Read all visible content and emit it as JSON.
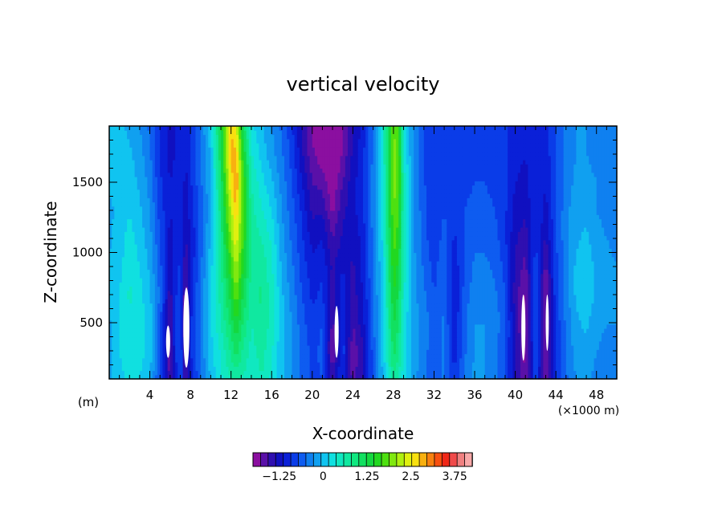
{
  "chart_data": {
    "type": "heatmap",
    "title": "vertical velocity",
    "xlabel": "X-coordinate",
    "ylabel": "Z-coordinate",
    "x_unit_label": "(m)",
    "x_scale_label": "(×1000 m)",
    "xlim": [
      0,
      50
    ],
    "ylim": [
      100,
      1900
    ],
    "x_ticks": [
      "4",
      "8",
      "12",
      "16",
      "20",
      "24",
      "28",
      "32",
      "36",
      "40",
      "44",
      "48"
    ],
    "y_ticks": [
      "500",
      "1000",
      "1500"
    ],
    "colorbar": {
      "ticks": [
        "-1.25",
        "0",
        "1.25",
        "2.5",
        "3.75"
      ],
      "min": -2.0,
      "max": 4.25,
      "step": 0.25,
      "colors": [
        "#8b0fa0",
        "#5a10a8",
        "#2f0fb0",
        "#1010c0",
        "#0a20d8",
        "#0a3ce8",
        "#0e5cf0",
        "#0f80f0",
        "#10a0f0",
        "#10c4f0",
        "#10e0e0",
        "#10e8c0",
        "#10e8a0",
        "#10e880",
        "#12e060",
        "#14d840",
        "#22d820",
        "#4ee010",
        "#80e810",
        "#b0f010",
        "#e0f010",
        "#f8e010",
        "#f8b010",
        "#f88010",
        "#f85010",
        "#f02818",
        "#f04a4a",
        "#f08080",
        "#f8a8a8"
      ]
    },
    "x": [
      0,
      1,
      2,
      3,
      4,
      5,
      6,
      6.5,
      7,
      7.5,
      8,
      9,
      10,
      11,
      12,
      12.5,
      13,
      14,
      15,
      16,
      17,
      18,
      19,
      20,
      21,
      22,
      23,
      24,
      25,
      26,
      27,
      28,
      28.5,
      29,
      30,
      31,
      32,
      33,
      34,
      35,
      36,
      37,
      38,
      39,
      40,
      41,
      42,
      43,
      44,
      45,
      46,
      47,
      48,
      49,
      50
    ],
    "z": [
      100,
      300,
      500,
      700,
      900,
      1100,
      1300,
      1500,
      1700,
      1900
    ],
    "values": [
      [
        0.2,
        0.4,
        0.6,
        0.5,
        0.3,
        -0.6,
        -1.6,
        -1.0,
        -0.4,
        -1.6,
        -0.9,
        -0.3,
        0.3,
        0.7,
        1.0,
        1.1,
        1.0,
        0.8,
        1.0,
        0.7,
        0.3,
        0.0,
        -0.3,
        -0.6,
        -0.5,
        -1.4,
        -0.7,
        -1.6,
        -1.2,
        -0.4,
        0.3,
        1.2,
        1.0,
        0.6,
        0.1,
        -0.2,
        -0.5,
        -0.2,
        -0.7,
        -0.2,
        0.1,
        0.0,
        -0.2,
        -0.5,
        -1.2,
        -1.7,
        -0.6,
        -1.7,
        -0.8,
        -0.3,
        0.0,
        0.1,
        -0.1,
        -0.2,
        -0.1
      ],
      [
        0.1,
        0.5,
        0.7,
        0.6,
        0.4,
        -0.5,
        -1.7,
        -0.8,
        -0.4,
        -1.8,
        -0.8,
        -0.2,
        0.4,
        0.8,
        1.3,
        1.6,
        1.3,
        0.9,
        1.1,
        0.8,
        0.3,
        0.0,
        -0.3,
        -0.6,
        -0.4,
        -1.8,
        -0.6,
        -1.7,
        -1.3,
        -0.4,
        0.4,
        1.6,
        1.3,
        0.7,
        0.1,
        -0.1,
        -0.5,
        -0.2,
        -0.9,
        -0.3,
        0.0,
        0.0,
        -0.2,
        -0.5,
        -1.2,
        -1.9,
        -0.5,
        -1.8,
        -0.8,
        -0.2,
        0.1,
        0.2,
        0.0,
        -0.1,
        0.0
      ],
      [
        0.2,
        0.5,
        0.7,
        0.6,
        0.4,
        -0.4,
        -1.6,
        -0.7,
        -0.5,
        -1.9,
        -0.8,
        -0.2,
        0.5,
        1.0,
        1.6,
        2.0,
        1.6,
        1.0,
        1.2,
        0.9,
        0.3,
        0.0,
        -0.4,
        -0.7,
        -0.5,
        -1.6,
        -0.7,
        -1.5,
        -1.1,
        -0.3,
        0.4,
        1.8,
        1.5,
        0.7,
        0.1,
        -0.1,
        -0.4,
        -0.2,
        -1.0,
        -0.3,
        0.0,
        0.0,
        -0.1,
        -0.4,
        -1.3,
        -1.9,
        -0.4,
        -1.9,
        -0.7,
        -0.2,
        0.2,
        0.3,
        0.1,
        0.0,
        0.0
      ],
      [
        0.3,
        0.5,
        0.8,
        0.6,
        0.3,
        -0.3,
        -1.4,
        -0.8,
        -0.6,
        -1.8,
        -0.9,
        -0.2,
        0.5,
        1.1,
        1.9,
        2.5,
        1.9,
        1.1,
        1.3,
        0.9,
        0.3,
        -0.1,
        -0.5,
        -0.8,
        -0.7,
        -1.5,
        -0.8,
        -1.4,
        -1.0,
        -0.3,
        0.5,
        2.0,
        1.7,
        0.8,
        0.1,
        -0.2,
        -0.5,
        -0.3,
        -1.0,
        -0.4,
        -0.1,
        -0.1,
        -0.2,
        -0.5,
        -1.4,
        -1.8,
        -0.5,
        -1.8,
        -0.6,
        -0.1,
        0.3,
        0.4,
        0.2,
        0.1,
        0.0
      ],
      [
        0.3,
        0.4,
        0.7,
        0.5,
        0.2,
        -0.4,
        -1.2,
        -0.9,
        -0.7,
        -1.5,
        -1.0,
        -0.3,
        0.4,
        1.2,
        2.2,
        2.8,
        2.2,
        1.2,
        1.2,
        0.8,
        0.2,
        -0.2,
        -0.6,
        -0.9,
        -0.8,
        -1.3,
        -1.0,
        -1.3,
        -0.9,
        -0.2,
        0.5,
        2.2,
        1.9,
        0.9,
        0.1,
        -0.3,
        -0.6,
        -0.3,
        -0.9,
        -0.5,
        -0.2,
        -0.2,
        -0.3,
        -0.6,
        -1.3,
        -1.6,
        -0.6,
        -1.6,
        -0.6,
        -0.1,
        0.3,
        0.4,
        0.2,
        0.1,
        0.0
      ],
      [
        0.2,
        0.4,
        0.6,
        0.4,
        0.1,
        -0.5,
        -1.1,
        -0.9,
        -0.8,
        -1.3,
        -1.0,
        -0.4,
        0.3,
        1.3,
        2.6,
        3.2,
        2.5,
        1.2,
        1.0,
        0.7,
        0.1,
        -0.3,
        -0.7,
        -1.1,
        -1.0,
        -1.5,
        -1.2,
        -1.2,
        -0.9,
        -0.2,
        0.6,
        2.4,
        2.1,
        0.9,
        0.0,
        -0.4,
        -0.7,
        -0.4,
        -0.8,
        -0.5,
        -0.3,
        -0.3,
        -0.4,
        -0.7,
        -1.2,
        -1.4,
        -0.7,
        -1.3,
        -0.5,
        -0.1,
        0.2,
        0.3,
        0.1,
        0.0,
        -0.1
      ],
      [
        0.2,
        0.3,
        0.5,
        0.3,
        0.0,
        -0.6,
        -1.0,
        -0.9,
        -0.8,
        -1.2,
        -0.9,
        -0.4,
        0.2,
        1.4,
        2.9,
        3.5,
        2.6,
        1.1,
        0.8,
        0.5,
        0.0,
        -0.4,
        -0.8,
        -1.3,
        -1.3,
        -1.8,
        -1.3,
        -1.1,
        -0.8,
        -0.1,
        0.6,
        2.5,
        2.3,
        0.9,
        0.0,
        -0.4,
        -0.7,
        -0.5,
        -0.7,
        -0.5,
        -0.4,
        -0.4,
        -0.5,
        -0.7,
        -1.1,
        -1.2,
        -0.7,
        -1.1,
        -0.5,
        -0.1,
        0.2,
        0.2,
        0.0,
        -0.1,
        -0.1
      ],
      [
        0.3,
        0.3,
        0.4,
        0.2,
        -0.1,
        -0.7,
        -1.0,
        -0.9,
        -0.7,
        -1.1,
        -0.8,
        -0.3,
        0.2,
        1.5,
        3.3,
        3.9,
        2.7,
        1.0,
        0.6,
        0.3,
        -0.1,
        -0.5,
        -1.0,
        -1.5,
        -1.6,
        -2.0,
        -1.5,
        -1.1,
        -0.8,
        -0.1,
        0.7,
        2.6,
        2.4,
        0.9,
        0.0,
        -0.5,
        -0.6,
        -0.5,
        -0.6,
        -0.6,
        -0.5,
        -0.5,
        -0.6,
        -0.7,
        -1.0,
        -1.1,
        -0.8,
        -1.0,
        -0.5,
        -0.2,
        0.1,
        0.1,
        0.0,
        -0.1,
        -0.1
      ],
      [
        0.4,
        0.3,
        0.3,
        0.1,
        -0.2,
        -0.8,
        -1.1,
        -1.0,
        -0.7,
        -1.0,
        -0.8,
        -0.3,
        0.3,
        1.7,
        3.6,
        3.6,
        2.4,
        0.8,
        0.4,
        0.1,
        -0.2,
        -0.6,
        -1.2,
        -1.7,
        -1.9,
        -2.2,
        -1.7,
        -1.2,
        -0.8,
        -0.2,
        0.8,
        2.6,
        2.4,
        0.8,
        -0.1,
        -0.5,
        -0.6,
        -0.6,
        -0.6,
        -0.6,
        -0.6,
        -0.6,
        -0.6,
        -0.7,
        -0.9,
        -1.0,
        -0.8,
        -0.9,
        -0.5,
        -0.2,
        0.0,
        0.0,
        -0.1,
        -0.1,
        0.0
      ],
      [
        0.4,
        0.3,
        0.2,
        0.0,
        -0.3,
        -0.8,
        -1.1,
        -1.0,
        -0.7,
        -0.9,
        -0.7,
        -0.2,
        0.4,
        1.8,
        3.5,
        3.2,
        2.0,
        0.6,
        0.3,
        0.0,
        -0.3,
        -0.7,
        -1.3,
        -1.8,
        -2.1,
        -2.4,
        -1.8,
        -1.3,
        -0.9,
        -0.2,
        0.8,
        2.5,
        2.3,
        0.7,
        -0.1,
        -0.5,
        -0.6,
        -0.6,
        -0.6,
        -0.6,
        -0.6,
        -0.6,
        -0.6,
        -0.7,
        -0.9,
        -1.0,
        -0.8,
        -0.9,
        -0.5,
        -0.2,
        0.0,
        0.0,
        -0.1,
        -0.1,
        0.0
      ]
    ],
    "blank_regions": [
      {
        "x0": 5.6,
        "x1": 6.0,
        "z0": 250,
        "z1": 480
      },
      {
        "x0": 7.3,
        "x1": 7.9,
        "z0": 180,
        "z1": 750
      },
      {
        "x0": 22.2,
        "x1": 22.6,
        "z0": 250,
        "z1": 620
      },
      {
        "x0": 40.6,
        "x1": 41.0,
        "z0": 230,
        "z1": 700
      },
      {
        "x0": 43.0,
        "x1": 43.3,
        "z0": 300,
        "z1": 700
      }
    ]
  }
}
